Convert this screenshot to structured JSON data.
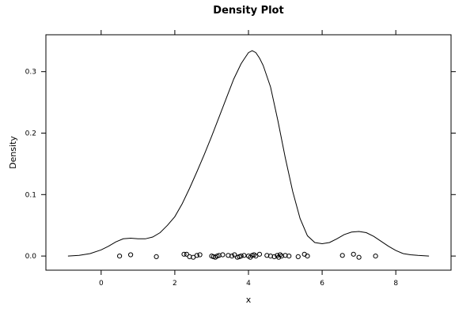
{
  "chart_data": {
    "type": "line",
    "title": "Density Plot",
    "xlabel": "x",
    "ylabel": "Density",
    "xlim": [
      -1.5,
      9.5
    ],
    "ylim": [
      -0.023,
      0.36
    ],
    "x_ticks": [
      0,
      2,
      4,
      6,
      8
    ],
    "x_tick_labels": [
      "0",
      "2",
      "4",
      "6",
      "8"
    ],
    "y_ticks": [
      0.0,
      0.1,
      0.2,
      0.3
    ],
    "y_tick_labels": [
      "0.0",
      "0.1",
      "0.2",
      "0.3"
    ],
    "grid": false,
    "series": [
      {
        "style": "line",
        "x": [
          -0.9,
          -0.6,
          -0.3,
          0.0,
          0.2,
          0.4,
          0.6,
          0.8,
          1.0,
          1.2,
          1.4,
          1.6,
          1.8,
          2.0,
          2.2,
          2.4,
          2.6,
          2.8,
          3.0,
          3.2,
          3.4,
          3.6,
          3.8,
          3.9,
          4.0,
          4.1,
          4.2,
          4.3,
          4.4,
          4.6,
          4.8,
          5.0,
          5.2,
          5.4,
          5.6,
          5.8,
          6.0,
          6.2,
          6.4,
          6.6,
          6.8,
          7.0,
          7.2,
          7.4,
          7.6,
          7.8,
          8.0,
          8.2,
          8.4,
          8.6,
          8.9
        ],
        "y": [
          0.0,
          0.001,
          0.004,
          0.01,
          0.016,
          0.023,
          0.028,
          0.029,
          0.028,
          0.028,
          0.031,
          0.038,
          0.05,
          0.064,
          0.085,
          0.11,
          0.137,
          0.165,
          0.195,
          0.226,
          0.257,
          0.288,
          0.313,
          0.322,
          0.331,
          0.334,
          0.331,
          0.322,
          0.31,
          0.275,
          0.22,
          0.16,
          0.105,
          0.061,
          0.033,
          0.022,
          0.02,
          0.022,
          0.028,
          0.035,
          0.039,
          0.04,
          0.038,
          0.032,
          0.024,
          0.016,
          0.009,
          0.004,
          0.002,
          0.001,
          0.0
        ]
      },
      {
        "style": "points",
        "x": [
          0.5,
          0.8,
          1.5,
          2.25,
          2.32,
          2.4,
          2.5,
          2.6,
          2.68,
          3.0,
          3.05,
          3.1,
          3.15,
          3.2,
          3.3,
          3.45,
          3.55,
          3.62,
          3.7,
          3.75,
          3.8,
          3.88,
          4.0,
          4.05,
          4.1,
          4.15,
          4.2,
          4.3,
          4.5,
          4.6,
          4.7,
          4.78,
          4.82,
          4.86,
          4.9,
          5.0,
          5.1,
          5.35,
          5.52,
          5.6,
          6.55,
          6.85,
          7.0,
          7.45
        ],
        "y": [
          0.0,
          0.002,
          -0.001,
          0.003,
          0.003,
          -0.001,
          -0.002,
          0.001,
          0.002,
          0.0,
          -0.001,
          -0.002,
          0.0,
          0.001,
          0.002,
          0.001,
          0.0,
          0.002,
          -0.002,
          -0.001,
          0.0,
          0.001,
          0.0,
          -0.002,
          0.001,
          0.002,
          0.0,
          0.003,
          0.001,
          0.0,
          -0.001,
          0.001,
          -0.002,
          0.002,
          0.0,
          0.001,
          0.0,
          -0.001,
          0.003,
          0.0,
          0.001,
          0.003,
          -0.002,
          0.0
        ]
      }
    ]
  }
}
